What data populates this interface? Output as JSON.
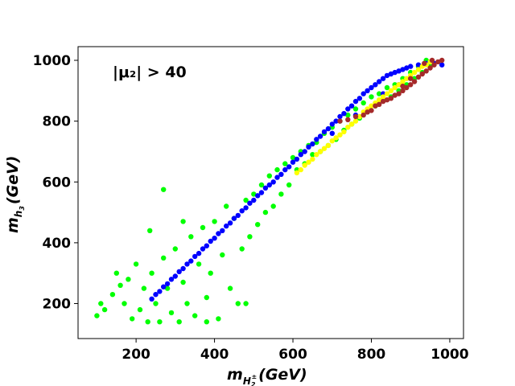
{
  "chart_data": {
    "type": "scatter",
    "title": "",
    "xlabel": {
      "base": "m",
      "sub": "H",
      "subsub": "2",
      "subsup": "±",
      "units": "(GeV)"
    },
    "ylabel": {
      "base": "m",
      "sub": "h",
      "subsub": "3",
      "units": "(GeV)"
    },
    "annotation": "|μ₂| > 40",
    "xlim": [
      52,
      1035
    ],
    "ylim": [
      85,
      1045
    ],
    "x_ticks": [
      200,
      400,
      600,
      800,
      1000
    ],
    "y_ticks": [
      200,
      400,
      600,
      800,
      1000
    ],
    "grid": false,
    "legend": "none",
    "series": [
      {
        "name": "green",
        "color": "#00ff00",
        "description": "broad band",
        "points": [
          [
            100,
            160
          ],
          [
            110,
            200
          ],
          [
            120,
            180
          ],
          [
            140,
            230
          ],
          [
            150,
            300
          ],
          [
            160,
            260
          ],
          [
            170,
            200
          ],
          [
            180,
            280
          ],
          [
            190,
            150
          ],
          [
            200,
            330
          ],
          [
            210,
            180
          ],
          [
            220,
            250
          ],
          [
            230,
            140
          ],
          [
            240,
            300
          ],
          [
            250,
            200
          ],
          [
            260,
            140
          ],
          [
            270,
            350
          ],
          [
            280,
            250
          ],
          [
            290,
            170
          ],
          [
            300,
            380
          ],
          [
            310,
            140
          ],
          [
            320,
            270
          ],
          [
            330,
            200
          ],
          [
            340,
            420
          ],
          [
            350,
            160
          ],
          [
            360,
            330
          ],
          [
            370,
            450
          ],
          [
            380,
            220
          ],
          [
            390,
            300
          ],
          [
            400,
            470
          ],
          [
            410,
            150
          ],
          [
            420,
            360
          ],
          [
            430,
            520
          ],
          [
            440,
            250
          ],
          [
            450,
            480
          ],
          [
            460,
            200
          ],
          [
            470,
            380
          ],
          [
            480,
            540
          ],
          [
            490,
            420
          ],
          [
            500,
            560
          ],
          [
            510,
            460
          ],
          [
            520,
            590
          ],
          [
            530,
            500
          ],
          [
            540,
            620
          ],
          [
            550,
            520
          ],
          [
            560,
            640
          ],
          [
            570,
            560
          ],
          [
            580,
            660
          ],
          [
            590,
            590
          ],
          [
            600,
            680
          ],
          [
            610,
            640
          ],
          [
            620,
            700
          ],
          [
            630,
            660
          ],
          [
            640,
            720
          ],
          [
            650,
            690
          ],
          [
            660,
            730
          ],
          [
            670,
            700
          ],
          [
            680,
            760
          ],
          [
            690,
            720
          ],
          [
            700,
            780
          ],
          [
            710,
            740
          ],
          [
            720,
            800
          ],
          [
            730,
            770
          ],
          [
            740,
            820
          ],
          [
            750,
            790
          ],
          [
            760,
            840
          ],
          [
            770,
            810
          ],
          [
            780,
            860
          ],
          [
            790,
            830
          ],
          [
            800,
            880
          ],
          [
            810,
            850
          ],
          [
            820,
            890
          ],
          [
            830,
            870
          ],
          [
            840,
            910
          ],
          [
            850,
            880
          ],
          [
            860,
            920
          ],
          [
            870,
            900
          ],
          [
            880,
            940
          ],
          [
            890,
            920
          ],
          [
            900,
            960
          ],
          [
            910,
            940
          ],
          [
            920,
            980
          ],
          [
            930,
            960
          ],
          [
            940,
            1000
          ],
          [
            950,
            980
          ],
          [
            270,
            575
          ],
          [
            235,
            440
          ],
          [
            320,
            470
          ],
          [
            480,
            200
          ],
          [
            380,
            140
          ]
        ]
      },
      {
        "name": "blue",
        "color": "#0000ff",
        "description": "narrow diagonal band",
        "points": [
          [
            240,
            215
          ],
          [
            250,
            230
          ],
          [
            260,
            240
          ],
          [
            270,
            255
          ],
          [
            280,
            265
          ],
          [
            290,
            280
          ],
          [
            300,
            290
          ],
          [
            310,
            305
          ],
          [
            320,
            315
          ],
          [
            330,
            330
          ],
          [
            340,
            340
          ],
          [
            350,
            355
          ],
          [
            360,
            365
          ],
          [
            370,
            380
          ],
          [
            380,
            390
          ],
          [
            390,
            405
          ],
          [
            400,
            415
          ],
          [
            410,
            430
          ],
          [
            420,
            440
          ],
          [
            430,
            455
          ],
          [
            440,
            465
          ],
          [
            450,
            480
          ],
          [
            460,
            490
          ],
          [
            470,
            505
          ],
          [
            480,
            515
          ],
          [
            490,
            530
          ],
          [
            500,
            540
          ],
          [
            510,
            555
          ],
          [
            520,
            565
          ],
          [
            530,
            580
          ],
          [
            540,
            590
          ],
          [
            550,
            600
          ],
          [
            560,
            615
          ],
          [
            570,
            625
          ],
          [
            580,
            640
          ],
          [
            590,
            650
          ],
          [
            600,
            665
          ],
          [
            610,
            675
          ],
          [
            620,
            690
          ],
          [
            630,
            700
          ],
          [
            640,
            715
          ],
          [
            650,
            725
          ],
          [
            660,
            740
          ],
          [
            670,
            750
          ],
          [
            680,
            765
          ],
          [
            690,
            775
          ],
          [
            700,
            790
          ],
          [
            710,
            800
          ],
          [
            720,
            815
          ],
          [
            730,
            825
          ],
          [
            740,
            840
          ],
          [
            750,
            850
          ],
          [
            760,
            865
          ],
          [
            770,
            875
          ],
          [
            780,
            890
          ],
          [
            790,
            900
          ],
          [
            800,
            910
          ],
          [
            810,
            920
          ],
          [
            820,
            930
          ],
          [
            830,
            940
          ],
          [
            840,
            950
          ],
          [
            850,
            955
          ],
          [
            860,
            960
          ],
          [
            870,
            965
          ],
          [
            880,
            970
          ],
          [
            890,
            975
          ],
          [
            900,
            980
          ],
          [
            920,
            985
          ],
          [
            940,
            990
          ],
          [
            960,
            990
          ],
          [
            980,
            985
          ],
          [
            870,
            920
          ],
          [
            830,
            890
          ],
          [
            760,
            820
          ],
          [
            700,
            760
          ]
        ]
      },
      {
        "name": "yellow",
        "color": "#ffff00",
        "description": "upper strip",
        "points": [
          [
            610,
            630
          ],
          [
            620,
            640
          ],
          [
            630,
            655
          ],
          [
            640,
            665
          ],
          [
            650,
            675
          ],
          [
            660,
            690
          ],
          [
            670,
            700
          ],
          [
            680,
            710
          ],
          [
            690,
            720
          ],
          [
            700,
            735
          ],
          [
            710,
            745
          ],
          [
            720,
            755
          ],
          [
            730,
            765
          ],
          [
            740,
            780
          ],
          [
            750,
            790
          ],
          [
            760,
            800
          ],
          [
            770,
            815
          ],
          [
            780,
            830
          ],
          [
            790,
            840
          ],
          [
            800,
            850
          ],
          [
            810,
            860
          ],
          [
            820,
            870
          ],
          [
            830,
            880
          ],
          [
            840,
            890
          ],
          [
            850,
            900
          ],
          [
            860,
            910
          ],
          [
            870,
            920
          ],
          [
            880,
            930
          ],
          [
            890,
            940
          ],
          [
            900,
            950
          ],
          [
            910,
            960
          ],
          [
            920,
            970
          ],
          [
            930,
            980
          ],
          [
            940,
            985
          ],
          [
            950,
            995
          ]
        ]
      },
      {
        "name": "brown",
        "color": "#a52a2a",
        "description": "upper-right tail",
        "points": [
          [
            720,
            800
          ],
          [
            740,
            805
          ],
          [
            760,
            815
          ],
          [
            780,
            820
          ],
          [
            790,
            830
          ],
          [
            800,
            835
          ],
          [
            810,
            850
          ],
          [
            820,
            855
          ],
          [
            830,
            865
          ],
          [
            840,
            870
          ],
          [
            850,
            875
          ],
          [
            860,
            885
          ],
          [
            870,
            890
          ],
          [
            880,
            900
          ],
          [
            890,
            910
          ],
          [
            900,
            920
          ],
          [
            910,
            930
          ],
          [
            920,
            945
          ],
          [
            930,
            955
          ],
          [
            940,
            965
          ],
          [
            950,
            975
          ],
          [
            960,
            985
          ],
          [
            970,
            995
          ],
          [
            980,
            1000
          ],
          [
            935,
            990
          ],
          [
            955,
            1000
          ],
          [
            900,
            940
          ],
          [
            880,
            915
          ]
        ]
      }
    ]
  }
}
